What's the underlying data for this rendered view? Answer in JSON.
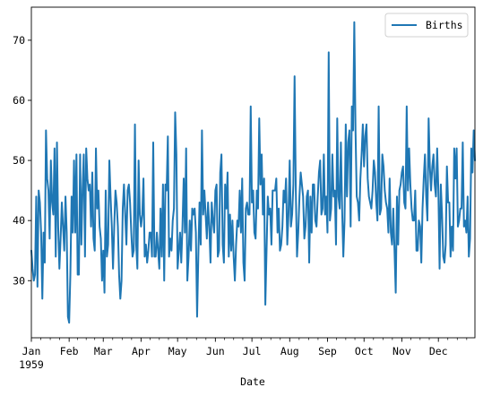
{
  "chart_data": {
    "type": "line",
    "title": "",
    "xlabel": "Date",
    "ylabel": "",
    "x_start": "1959-01-01",
    "x_end": "1959-12-31",
    "x_tick_labels": [
      "Jan",
      "Feb",
      "Mar",
      "Apr",
      "May",
      "Jun",
      "Jul",
      "Aug",
      "Sep",
      "Oct",
      "Nov",
      "Dec"
    ],
    "x_tick_year": "1959",
    "y_ticks": [
      30,
      40,
      50,
      60,
      70
    ],
    "ylim": [
      20.5,
      75.5
    ],
    "grid": false,
    "legend_position": "top-right",
    "series": [
      {
        "name": "Births",
        "color": "#1f77b4",
        "values": [
          35,
          32,
          30,
          31,
          44,
          29,
          45,
          43,
          38,
          27,
          38,
          33,
          55,
          47,
          45,
          37,
          50,
          43,
          41,
          52,
          34,
          53,
          39,
          32,
          37,
          43,
          39,
          35,
          44,
          38,
          24,
          23,
          31,
          44,
          38,
          50,
          38,
          51,
          31,
          31,
          51,
          36,
          45,
          51,
          34,
          52,
          47,
          45,
          46,
          39,
          48,
          37,
          35,
          52,
          42,
          45,
          39,
          37,
          30,
          35,
          28,
          45,
          34,
          36,
          50,
          44,
          39,
          32,
          39,
          45,
          43,
          39,
          31,
          27,
          30,
          42,
          46,
          41,
          36,
          45,
          46,
          43,
          38,
          34,
          35,
          56,
          36,
          32,
          50,
          41,
          39,
          41,
          47,
          34,
          36,
          33,
          35,
          38,
          38,
          34,
          53,
          34,
          34,
          38,
          35,
          32,
          42,
          34,
          46,
          30,
          46,
          45,
          54,
          34,
          37,
          35,
          40,
          42,
          58,
          51,
          32,
          35,
          38,
          33,
          39,
          47,
          38,
          52,
          30,
          34,
          40,
          35,
          42,
          41,
          42,
          38,
          24,
          34,
          43,
          36,
          55,
          41,
          45,
          41,
          37,
          43,
          39,
          33,
          43,
          40,
          38,
          45,
          46,
          34,
          35,
          48,
          51,
          36,
          33,
          46,
          42,
          48,
          34,
          41,
          35,
          40,
          34,
          30,
          36,
          40,
          39,
          45,
          38,
          47,
          33,
          30,
          42,
          43,
          41,
          41,
          59,
          43,
          45,
          38,
          37,
          45,
          42,
          57,
          46,
          51,
          41,
          47,
          26,
          35,
          44,
          41,
          42,
          36,
          45,
          45,
          45,
          47,
          38,
          42,
          35,
          36,
          39,
          45,
          43,
          47,
          36,
          41,
          50,
          39,
          41,
          46,
          64,
          45,
          34,
          38,
          44,
          48,
          46,
          44,
          37,
          39,
          44,
          45,
          33,
          44,
          38,
          46,
          46,
          40,
          39,
          44,
          48,
          50,
          41,
          42,
          51,
          41,
          44,
          38,
          68,
          40,
          42,
          51,
          44,
          45,
          36,
          57,
          44,
          42,
          53,
          42,
          34,
          40,
          56,
          44,
          53,
          55,
          39,
          59,
          55,
          73,
          55,
          44,
          43,
          40,
          47,
          51,
          56,
          49,
          54,
          56,
          47,
          44,
          43,
          42,
          45,
          50,
          48,
          43,
          40,
          59,
          41,
          42,
          51,
          49,
          45,
          43,
          42,
          38,
          47,
          38,
          36,
          42,
          35,
          28,
          44,
          36,
          45,
          46,
          48,
          49,
          43,
          42,
          59,
          45,
          52,
          46,
          42,
          40,
          40,
          45,
          35,
          35,
          40,
          39,
          33,
          42,
          47,
          51,
          44,
          40,
          57,
          49,
          45,
          49,
          51,
          46,
          44,
          52,
          45,
          32,
          46,
          41,
          34,
          33,
          36,
          49,
          43,
          43,
          34,
          39,
          35,
          52,
          47,
          52,
          39,
          40,
          42,
          42,
          53,
          39,
          40,
          38,
          44,
          34,
          37,
          52,
          48,
          55,
          50
        ]
      }
    ]
  }
}
